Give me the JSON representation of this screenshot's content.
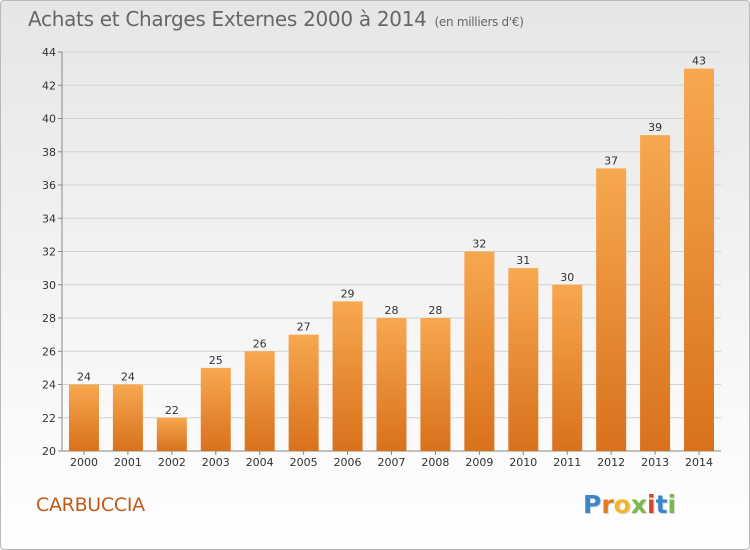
{
  "header": {
    "title": "Achats et Charges Externes 2000 à 2014",
    "unit": "(en milliers d'€)"
  },
  "commune": "CARBUCCIA",
  "logo": {
    "letters": [
      "P",
      "r",
      "o",
      "x",
      "i",
      "t",
      "i"
    ],
    "colors": [
      "#3a86c8",
      "#e8791a",
      "#f1b52a",
      "#7cb84a",
      "#d9442e",
      "#3a86c8",
      "#7cb84a"
    ]
  },
  "chart_data": {
    "type": "bar",
    "categories": [
      "2000",
      "2001",
      "2002",
      "2003",
      "2004",
      "2005",
      "2006",
      "2007",
      "2008",
      "2009",
      "2010",
      "2011",
      "2012",
      "2013",
      "2014"
    ],
    "values": [
      24,
      24,
      22,
      25,
      26,
      27,
      29,
      28,
      28,
      32,
      31,
      30,
      37,
      39,
      43
    ],
    "ylim": [
      20,
      44
    ],
    "yticks": [
      20,
      22,
      24,
      26,
      28,
      30,
      32,
      34,
      36,
      38,
      40,
      42,
      44
    ],
    "grid": true,
    "bar_color": "#ee8a2e"
  }
}
